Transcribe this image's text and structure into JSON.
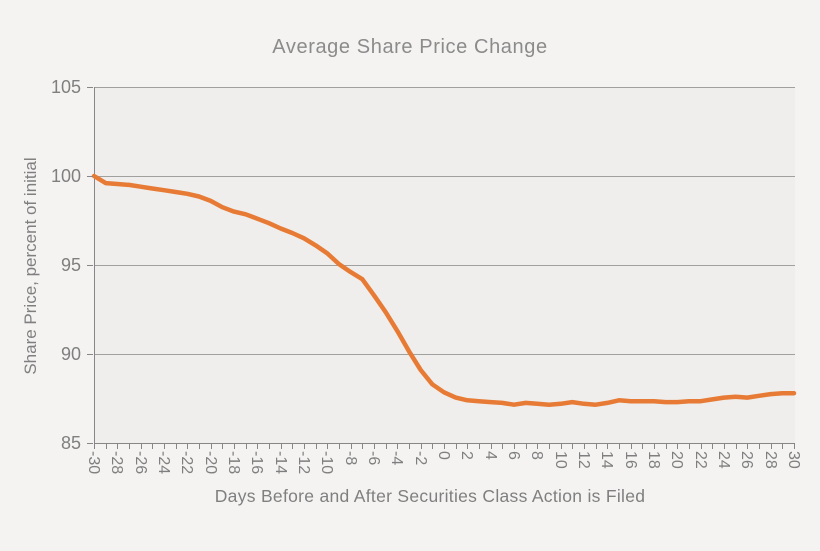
{
  "title": "Average Share Price Change",
  "chart_data": {
    "type": "line",
    "title": "Average Share Price Change",
    "xlabel": "Days Before and After Securities Class Action is Filed",
    "ylabel": "Share Price, percent of initial",
    "xlim": [
      -30,
      30
    ],
    "ylim": [
      85,
      105
    ],
    "y_ticks": [
      105,
      100,
      95,
      90,
      85
    ],
    "gridline_values": [
      105,
      100,
      95,
      90
    ],
    "x_minor_tick_step": 1,
    "x_label_step": 2,
    "legend": "none",
    "grid": "horizontal-only",
    "line_color": "#e77b35",
    "series": [
      {
        "name": "Average Share Price",
        "x": [
          -30,
          -29,
          -28,
          -27,
          -26,
          -25,
          -24,
          -23,
          -22,
          -21,
          -20,
          -19,
          -18,
          -17,
          -16,
          -15,
          -14,
          -13,
          -12,
          -11,
          -10,
          -9,
          -8,
          -7,
          -6,
          -5,
          -4,
          -3,
          -2,
          -1,
          0,
          1,
          2,
          3,
          4,
          5,
          6,
          7,
          8,
          9,
          10,
          11,
          12,
          13,
          14,
          15,
          16,
          17,
          18,
          19,
          20,
          21,
          22,
          23,
          24,
          25,
          26,
          27,
          28,
          29,
          30
        ],
        "values": [
          100.0,
          99.6,
          99.55,
          99.5,
          99.4,
          99.3,
          99.2,
          99.1,
          99.0,
          98.85,
          98.6,
          98.25,
          98.0,
          97.85,
          97.6,
          97.35,
          97.05,
          96.8,
          96.5,
          96.1,
          95.65,
          95.05,
          94.6,
          94.2,
          93.3,
          92.35,
          91.3,
          90.15,
          89.1,
          88.3,
          87.85,
          87.55,
          87.4,
          87.35,
          87.3,
          87.25,
          87.15,
          87.25,
          87.2,
          87.15,
          87.2,
          87.3,
          87.2,
          87.15,
          87.25,
          87.4,
          87.35,
          87.35,
          87.35,
          87.3,
          87.3,
          87.35,
          87.35,
          87.45,
          87.55,
          87.6,
          87.55,
          87.65,
          87.75,
          87.8,
          87.8
        ]
      }
    ]
  },
  "colors": {
    "page_bg": "#f4f3f2",
    "plot_bg": "#efeeec",
    "gridline": "#a0a09e",
    "axis": "#868686",
    "text": "#7f7f7f",
    "title_text": "#8b8b8b",
    "line": "#e77b35"
  }
}
